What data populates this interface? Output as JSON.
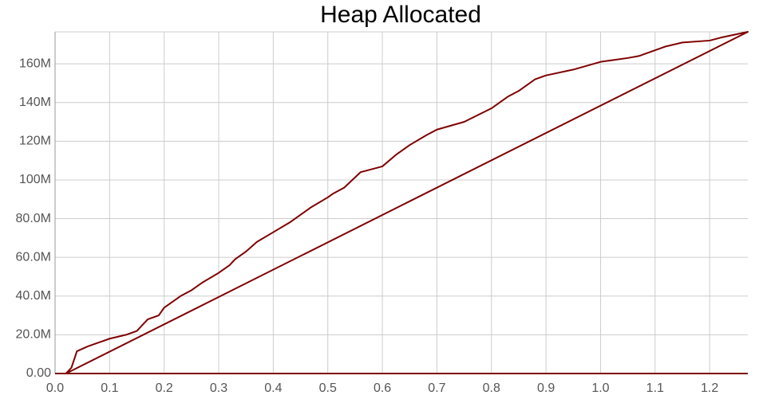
{
  "chart_data": {
    "type": "line",
    "title": "Heap Allocated",
    "x": [
      0,
      0.02,
      0.03,
      0.04,
      0.06,
      0.08,
      0.1,
      0.13,
      0.15,
      0.16,
      0.17,
      0.19,
      0.2,
      0.23,
      0.25,
      0.27,
      0.3,
      0.32,
      0.33,
      0.35,
      0.37,
      0.4,
      0.43,
      0.45,
      0.47,
      0.5,
      0.51,
      0.53,
      0.56,
      0.6,
      0.625,
      0.65,
      0.68,
      0.7,
      0.75,
      0.8,
      0.83,
      0.85,
      0.88,
      0.9,
      0.95,
      1.0,
      1.05,
      1.07,
      1.1,
      1.12,
      1.15,
      1.2,
      1.22,
      1.27,
      0.02,
      1.27
    ],
    "series": [
      {
        "color": "#7f0000",
        "values": [
          0,
          0,
          3,
          11.5,
          14,
          16,
          18,
          20,
          22,
          25,
          28,
          30,
          34,
          40,
          43,
          47,
          52,
          56,
          59,
          63,
          68,
          73,
          78,
          82,
          86,
          91,
          93,
          96,
          104,
          107,
          113,
          118,
          123,
          126,
          130,
          137,
          143,
          146,
          152,
          154,
          157,
          161,
          163,
          164,
          167,
          169,
          171,
          172,
          173.5,
          176.5,
          0,
          0
        ]
      }
    ],
    "xlim": [
      0,
      1.27
    ],
    "ylim": [
      0,
      176.5
    ],
    "xticks": [
      {
        "value": 0,
        "label": "0.0"
      },
      0.1,
      0.2,
      0.3,
      0.4,
      0.5,
      0.6,
      0.7,
      0.8,
      0.9,
      {
        "value": 1,
        "label": "1.0"
      },
      1.1,
      1.2
    ],
    "yticks": [
      {
        "value": 0,
        "label": "0.00"
      },
      {
        "value": 20,
        "label": "20.0M"
      },
      {
        "value": 40,
        "label": "40.0M"
      },
      {
        "value": 60,
        "label": "60.0M"
      },
      {
        "value": 80,
        "label": "80.0M"
      },
      {
        "value": 100,
        "label": "100M"
      },
      {
        "value": 120,
        "label": "120M"
      },
      {
        "value": 140,
        "label": "140M"
      },
      {
        "value": 160,
        "label": "160M"
      }
    ],
    "grid": true
  }
}
